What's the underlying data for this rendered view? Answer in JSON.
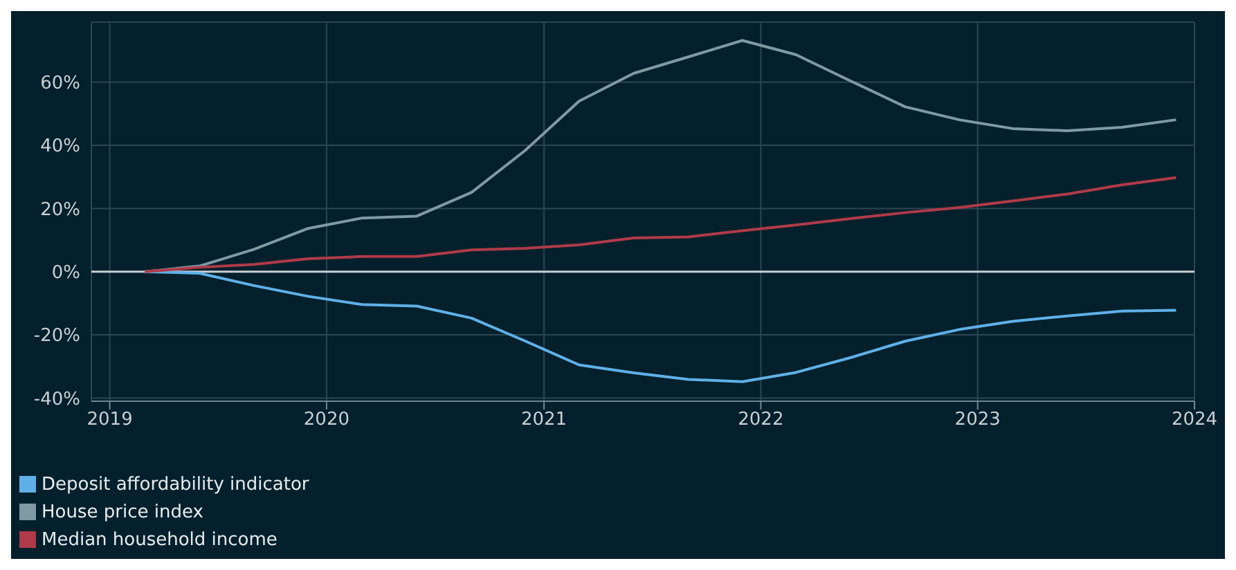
{
  "chart_data": {
    "type": "line",
    "x": [
      "2019-03",
      "2019-06",
      "2019-09",
      "2019-12",
      "2020-03",
      "2020-06",
      "2020-09",
      "2020-12",
      "2021-03",
      "2021-06",
      "2021-09",
      "2021-12",
      "2022-03",
      "2022-06",
      "2022-09",
      "2022-12",
      "2023-03",
      "2023-06",
      "2023-09",
      "2023-12"
    ],
    "series": [
      {
        "name": "Deposit affordability indicator",
        "color": "#5fb0e8",
        "values": [
          0,
          -0.5,
          -4.4,
          -7.8,
          -10.4,
          -10.9,
          -14.7,
          -22,
          -29.5,
          -32,
          -34.1,
          -34.8,
          -31.9,
          -27.2,
          -22,
          -18.3,
          -15.7,
          -14,
          -12.5,
          -12.2
        ]
      },
      {
        "name": "House price index",
        "color": "#7f9aa3",
        "values": [
          0,
          1.8,
          7.1,
          13.7,
          17,
          17.6,
          25.1,
          38.5,
          54,
          62.8,
          68,
          73.2,
          68.7,
          60.4,
          52.2,
          48.1,
          45.3,
          44.6,
          45.7,
          48.1
        ]
      },
      {
        "name": "Median household income",
        "color": "#b03a48",
        "values": [
          0,
          1.4,
          2.3,
          4.1,
          4.8,
          4.8,
          6.9,
          7.4,
          8.5,
          10.7,
          11,
          13,
          14.8,
          16.8,
          18.7,
          20.3,
          22.4,
          24.6,
          27.5,
          29.8
        ]
      }
    ],
    "xlim": [
      "2018-12",
      "2024-01"
    ],
    "xticks": [
      "2019",
      "2020",
      "2021",
      "2022",
      "2023",
      "2024"
    ],
    "ylim": [
      -41,
      79
    ],
    "yticks": [
      {
        "value": -40,
        "label": "-40%"
      },
      {
        "value": -20,
        "label": "-20%"
      },
      {
        "value": 0,
        "label": "0%"
      },
      {
        "value": 20,
        "label": "20%"
      },
      {
        "value": 40,
        "label": "40%"
      },
      {
        "value": 60,
        "label": "60%"
      }
    ],
    "ref_lines": [
      {
        "axis": "y",
        "value": 0,
        "color": "#c8d0d4"
      }
    ],
    "grid": true,
    "legend": "bottom",
    "marker": "none",
    "line_style": "solid"
  }
}
